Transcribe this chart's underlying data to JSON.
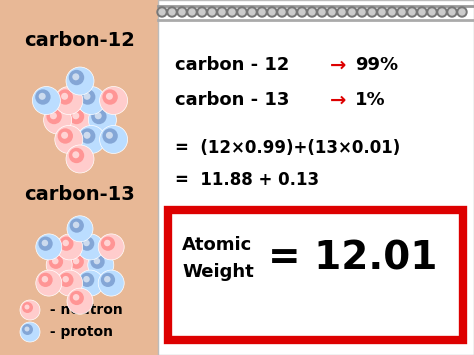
{
  "bg_color": "#E8B896",
  "notebook_color": "#FFFFFF",
  "title_left1": "carbon-12",
  "title_left2": "carbon-13",
  "line1_black": "carbon - 12",
  "line1_arrow": "→",
  "line1_pct": "99%",
  "line2_black": "carbon - 13",
  "line2_arrow": "→",
  "line2_pct": "1%",
  "eq1": "=  (12×0.99)+(13×0.01)",
  "eq2": "=  11.88 + 0.13",
  "atomic_label1": "Atomic",
  "atomic_label2": "Weight",
  "atomic_value": "= 12.01",
  "legend1_text": " - neutron",
  "legend2_text": " - proton",
  "red_color": "#DD0000",
  "black_color": "#000000",
  "neutron_color_inner": "#FF8888",
  "neutron_color_outer": "#FFCCCC",
  "proton_color_inner": "#7799CC",
  "proton_color_outer": "#BBDDFF",
  "spiral_color": "#777777",
  "box_edge_color": "#DD0000",
  "figsize": [
    4.74,
    3.55
  ],
  "dpi": 100
}
